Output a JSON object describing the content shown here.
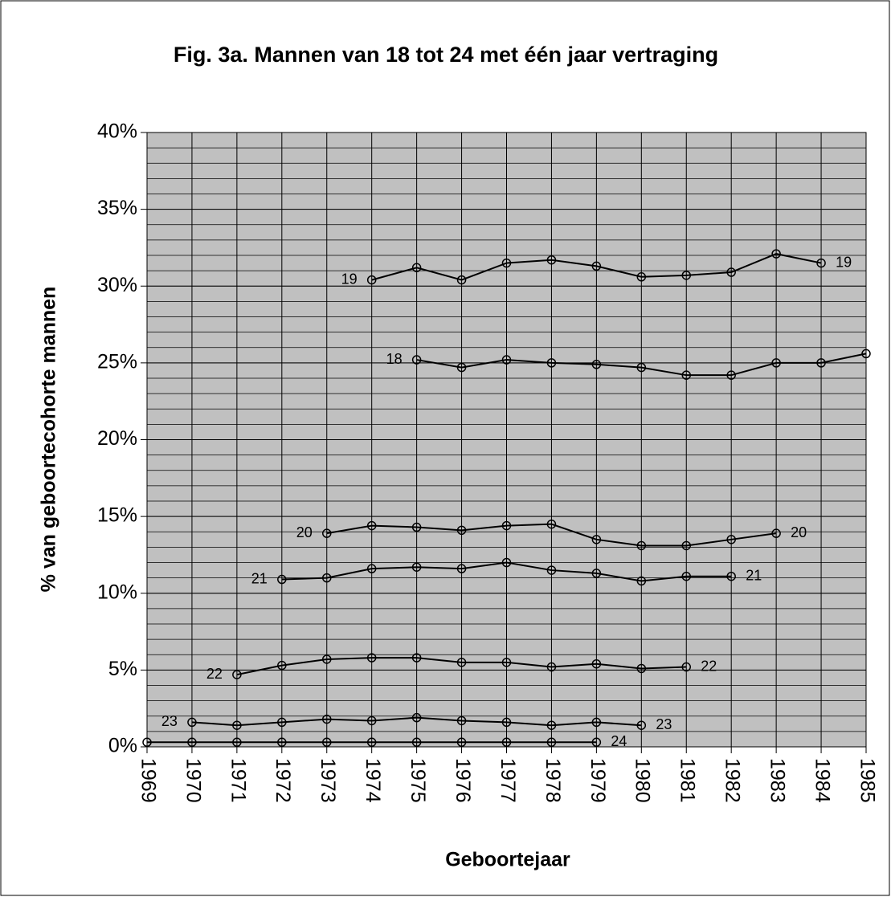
{
  "chart_data": {
    "type": "line",
    "title": "Fig. 3a. Mannen van 18 tot 24 met één jaar vertraging",
    "xlabel": "Geboortejaar",
    "ylabel": "% van geboortecohorte mannen",
    "x": [
      1969,
      1970,
      1971,
      1972,
      1973,
      1974,
      1975,
      1976,
      1977,
      1978,
      1979,
      1980,
      1981,
      1982,
      1983,
      1984,
      1985
    ],
    "xlim": [
      1969,
      1985
    ],
    "xticks": [
      1969,
      1970,
      1971,
      1972,
      1973,
      1974,
      1975,
      1976,
      1977,
      1978,
      1979,
      1980,
      1981,
      1982,
      1983,
      1984,
      1985
    ],
    "ylim": [
      0,
      40
    ],
    "yticks": [
      {
        "value": 0,
        "label": "0%"
      },
      {
        "value": 5,
        "label": "5%"
      },
      {
        "value": 10,
        "label": "10%"
      },
      {
        "value": 15,
        "label": "15%"
      },
      {
        "value": 20,
        "label": "20%"
      },
      {
        "value": 25,
        "label": "25%"
      },
      {
        "value": 30,
        "label": "30%"
      },
      {
        "value": 35,
        "label": "35%"
      },
      {
        "value": 40,
        "label": "40%"
      }
    ],
    "grid": true,
    "minor_grid_step": 1,
    "plot_background": "#c0c0c0",
    "series": [
      {
        "name": "19",
        "color": "#000000",
        "label_at": [
          "start",
          "end"
        ],
        "values": [
          null,
          null,
          null,
          null,
          null,
          30.4,
          31.2,
          30.4,
          31.5,
          31.7,
          31.3,
          30.6,
          30.7,
          30.9,
          32.1,
          31.5,
          null
        ]
      },
      {
        "name": "18",
        "color": "#000000",
        "label_at": [
          "start"
        ],
        "values": [
          null,
          null,
          null,
          null,
          null,
          null,
          25.2,
          24.7,
          25.2,
          25.0,
          24.9,
          24.7,
          24.2,
          24.2,
          25.0,
          25.0,
          25.6
        ]
      },
      {
        "name": "20",
        "color": "#000000",
        "label_at": [
          "start",
          "end"
        ],
        "values": [
          null,
          null,
          null,
          null,
          13.9,
          14.4,
          14.3,
          14.1,
          14.4,
          14.5,
          13.5,
          13.1,
          13.1,
          13.5,
          13.9,
          null,
          null
        ]
      },
      {
        "name": "21",
        "color": "#000000",
        "label_at": [
          "start",
          "end"
        ],
        "values": [
          null,
          null,
          null,
          10.9,
          11.0,
          11.6,
          11.7,
          11.6,
          12.0,
          11.5,
          11.3,
          10.8,
          11.1,
          11.1,
          null,
          null,
          null
        ]
      },
      {
        "name": "22",
        "color": "#000000",
        "label_at": [
          "start",
          "end"
        ],
        "values": [
          null,
          null,
          4.7,
          5.3,
          5.7,
          5.8,
          5.8,
          5.5,
          5.5,
          5.2,
          5.4,
          5.1,
          5.2,
          null,
          null,
          null,
          null
        ]
      },
      {
        "name": "23",
        "color": "#000000",
        "label_at": [
          "start",
          "end"
        ],
        "values": [
          null,
          1.6,
          1.4,
          1.6,
          1.8,
          1.7,
          1.9,
          1.7,
          1.6,
          1.4,
          1.6,
          1.4,
          null,
          null,
          null,
          null,
          null
        ]
      },
      {
        "name": "24",
        "color": "#000000",
        "label_at": [
          "end"
        ],
        "values": [
          0.3,
          0.3,
          0.3,
          0.3,
          0.3,
          0.3,
          0.3,
          0.3,
          0.3,
          0.3,
          0.3,
          null,
          null,
          null,
          null,
          null,
          null
        ]
      }
    ]
  }
}
